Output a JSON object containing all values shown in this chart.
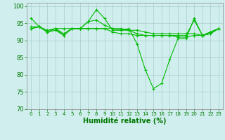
{
  "xlabel": "Humidité relative (%)",
  "background_color": "#d0eeee",
  "line_color": "#00bb00",
  "grid_color": "#aacccc",
  "xlim": [
    -0.5,
    23.5
  ],
  "ylim": [
    70,
    101
  ],
  "yticks": [
    70,
    75,
    80,
    85,
    90,
    95,
    100
  ],
  "xticks": [
    0,
    1,
    2,
    3,
    4,
    5,
    6,
    7,
    8,
    9,
    10,
    11,
    12,
    13,
    14,
    15,
    16,
    17,
    18,
    19,
    20,
    21,
    22,
    23
  ],
  "series": [
    [
      96.5,
      94.0,
      92.5,
      93.0,
      91.5,
      93.5,
      93.5,
      95.5,
      99.0,
      96.5,
      93.0,
      93.0,
      93.5,
      89.0,
      81.5,
      76.0,
      77.5,
      84.5,
      90.5,
      90.5,
      96.5,
      91.5,
      92.5,
      93.5
    ],
    [
      94.0,
      94.0,
      93.0,
      93.5,
      93.5,
      93.5,
      93.5,
      93.5,
      93.5,
      93.5,
      93.5,
      93.5,
      93.0,
      93.0,
      92.5,
      92.0,
      92.0,
      92.0,
      92.0,
      92.0,
      92.0,
      91.5,
      92.0,
      93.5
    ],
    [
      93.5,
      94.0,
      92.5,
      93.5,
      92.0,
      93.5,
      93.5,
      95.5,
      96.0,
      94.5,
      93.5,
      93.0,
      93.0,
      92.0,
      91.5,
      91.5,
      91.5,
      91.5,
      91.5,
      91.5,
      96.0,
      91.5,
      92.5,
      93.5
    ],
    [
      93.5,
      94.0,
      92.5,
      93.5,
      91.5,
      93.5,
      93.5,
      93.5,
      93.5,
      93.5,
      92.5,
      92.0,
      92.0,
      91.5,
      91.5,
      91.5,
      91.5,
      91.5,
      91.0,
      91.0,
      91.5,
      91.5,
      92.0,
      93.5
    ]
  ],
  "xlabel_fontsize": 7,
  "tick_fontsize": 5,
  "ylabel_fontsize": 6
}
